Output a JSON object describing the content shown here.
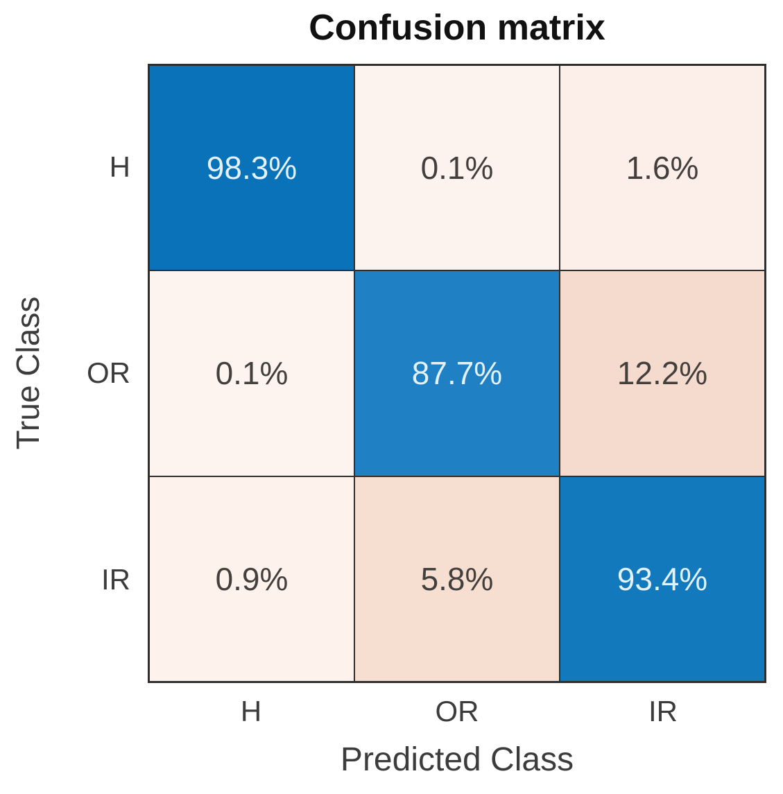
{
  "chart_data": {
    "type": "heatmap",
    "title": "Confusion matrix",
    "xlabel": "Predicted Class",
    "ylabel": "True Class",
    "x_tick_labels": [
      "H",
      "OR",
      "IR"
    ],
    "y_tick_labels": [
      "H",
      "OR",
      "IR"
    ],
    "values_percent": [
      [
        98.3,
        0.1,
        1.6
      ],
      [
        0.1,
        87.7,
        12.2
      ],
      [
        0.9,
        5.8,
        93.4
      ]
    ],
    "legend": "none",
    "grid": "cell-borders",
    "cells": [
      [
        {
          "label": "98.3%",
          "bg": "#0a72b8",
          "fg": "#e3f1fa"
        },
        {
          "label": "0.1%",
          "bg": "#fdf3ee",
          "fg": "#433f3d"
        },
        {
          "label": "1.6%",
          "bg": "#fceee8",
          "fg": "#433f3d"
        }
      ],
      [
        {
          "label": "0.1%",
          "bg": "#fdf4ef",
          "fg": "#433f3d"
        },
        {
          "label": "87.7%",
          "bg": "#1f81c4",
          "fg": "#e3f1fa"
        },
        {
          "label": "12.2%",
          "bg": "#f5dbcd",
          "fg": "#433f3d"
        }
      ],
      [
        {
          "label": "0.9%",
          "bg": "#fdf2ec",
          "fg": "#433f3d"
        },
        {
          "label": "5.8%",
          "bg": "#f6ded1",
          "fg": "#433f3d"
        },
        {
          "label": "93.4%",
          "bg": "#1279bd",
          "fg": "#e3f1fa"
        }
      ]
    ],
    "colors": {
      "diagonal_strong_blue": "#0a72b8",
      "diagonal_mid_blue": "#1279bd",
      "diagonal_light_blue": "#1f81c4",
      "offdiag_light": "#fdf3ee",
      "offdiag_peach": "#f5dbcd",
      "grid_line": "#2e2e2e",
      "dark_text": "#433f3d",
      "light_text": "#e3f1fa",
      "title_text": "#111111"
    }
  }
}
